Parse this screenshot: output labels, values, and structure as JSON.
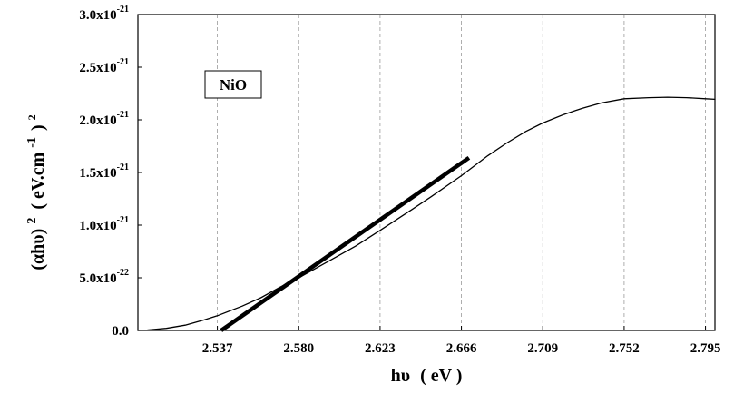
{
  "chart_data": {
    "type": "line",
    "title": "",
    "legend": {
      "label": "NiO",
      "placement": "top-left"
    },
    "xlabel": {
      "text": "hυ",
      "unit": "( eV )"
    },
    "ylabel": {
      "base": "(αhυ)",
      "power": "2",
      "unit_prefix": "( eV.cm",
      "unit_power": "-1",
      "unit_suffix": ")",
      "unit_suffix_power": "2"
    },
    "xlim": [
      2.495,
      2.8
    ],
    "ylim": [
      0,
      3e-21
    ],
    "xticks": [
      2.537,
      2.58,
      2.623,
      2.666,
      2.709,
      2.752,
      2.795
    ],
    "xtick_labels": [
      "2.537",
      "2.580",
      "2.623",
      "2.666",
      "2.709",
      "2.752",
      "2.795"
    ],
    "yticks": [
      {
        "value": 0.0,
        "mantissa": "0.0",
        "exp": ""
      },
      {
        "value": 5e-22,
        "mantissa": "5.0x10",
        "exp": "-22"
      },
      {
        "value": 1e-21,
        "mantissa": "1.0x10",
        "exp": "-21"
      },
      {
        "value": 1.5e-21,
        "mantissa": "1.5x10",
        "exp": "-21"
      },
      {
        "value": 2e-21,
        "mantissa": "2.0x10",
        "exp": "-21"
      },
      {
        "value": 2.5e-21,
        "mantissa": "2.5x10",
        "exp": "-21"
      },
      {
        "value": 3e-21,
        "mantissa": "3.0x10",
        "exp": "-21"
      }
    ],
    "grid": {
      "vertical": true,
      "horizontal": false,
      "style": "dashed"
    },
    "series": [
      {
        "style": "thin",
        "color": "#000000",
        "x": [
          2.495,
          2.5,
          2.51,
          2.52,
          2.53,
          2.537,
          2.55,
          2.56,
          2.57,
          2.58,
          2.59,
          2.6,
          2.61,
          2.623,
          2.64,
          2.65,
          2.666,
          2.68,
          2.69,
          2.7,
          2.709,
          2.72,
          2.73,
          2.74,
          2.752,
          2.765,
          2.775,
          2.785,
          2.795,
          2.8
        ],
        "y": [
          0.0,
          4e-24,
          2e-23,
          5e-23,
          1e-22,
          1.4e-22,
          2.3e-22,
          3.1e-22,
          4.1e-22,
          5e-22,
          6e-22,
          7e-22,
          8e-22,
          9.5e-22,
          1.15e-21,
          1.27e-21,
          1.47e-21,
          1.66e-21,
          1.78e-21,
          1.89e-21,
          1.97e-21,
          2.05e-21,
          2.11e-21,
          2.16e-21,
          2.2e-21,
          2.21e-21,
          2.215e-21,
          2.21e-21,
          2.2e-21,
          2.195e-21
        ]
      },
      {
        "style": "thick",
        "color": "#000000",
        "x": [
          2.539,
          2.67
        ],
        "y": [
          0.0,
          1.64e-21
        ]
      }
    ]
  }
}
